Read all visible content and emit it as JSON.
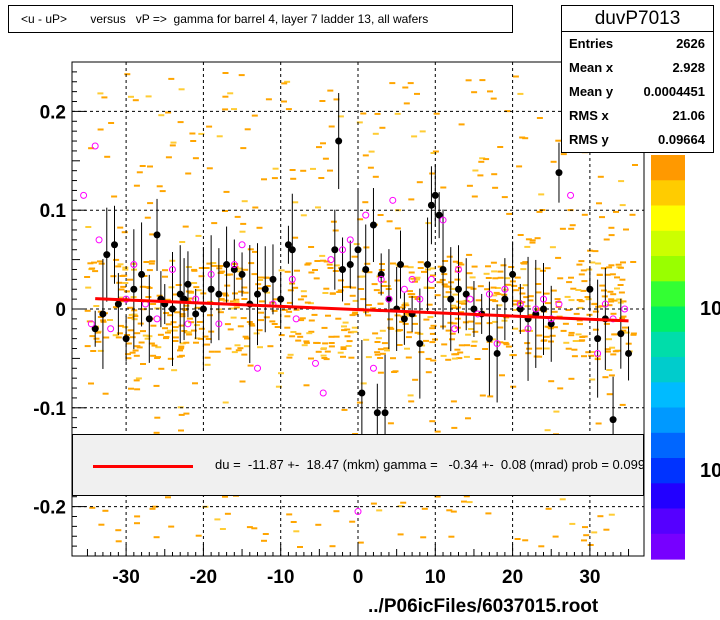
{
  "title": "<u - uP>       versus   vP =>  gamma for barrel 4, layer 7 ladder 13, all wafers",
  "stats": {
    "name": "duvP7013",
    "rows": [
      {
        "label": "Entries",
        "value": "2626"
      },
      {
        "label": "Mean x",
        "value": "2.928"
      },
      {
        "label": "Mean y",
        "value": "0.0004451"
      },
      {
        "label": "RMS x",
        "value": "21.06"
      },
      {
        "label": "RMS y",
        "value": "0.09664"
      }
    ]
  },
  "legend": {
    "text": "du =  -11.87 +-  18.47 (mkm) gamma =   -0.34 +-  0.08 (mrad) prob = 0.099"
  },
  "footer": "../P06icFiles/6037015.root",
  "palette_labels": [
    "10",
    "10"
  ],
  "colors": {
    "histogram_fill": "#ffa500",
    "histogram_light": "#ffcc33",
    "profile_point": "#000000",
    "marker_open": "#ff00ff",
    "fit_line": "#ff0000",
    "legend_bg": "#f0f0f0"
  },
  "chart_data": {
    "type": "scatter",
    "xlim": [
      -37,
      37
    ],
    "ylim": [
      -0.25,
      0.25
    ],
    "x_ticks": [
      -30,
      -20,
      -10,
      0,
      10,
      20,
      30
    ],
    "y_ticks": [
      -0.2,
      -0.1,
      0,
      0.1,
      0.2
    ],
    "x_tick_labels": [
      "-30",
      "-20",
      "-10",
      "0",
      "10",
      "20",
      "30"
    ],
    "y_tick_labels": [
      "-0.2",
      "-0.1",
      "0",
      "0.1",
      "0.2"
    ],
    "grid": true,
    "fit_line": {
      "x": [
        -34,
        35
      ],
      "y": [
        0.0105,
        -0.012
      ]
    },
    "profile_points": [
      {
        "x": -34,
        "y": -0.02
      },
      {
        "x": -33,
        "y": -0.005
      },
      {
        "x": -32.5,
        "y": 0.055
      },
      {
        "x": -31.5,
        "y": 0.065
      },
      {
        "x": -31,
        "y": 0.005
      },
      {
        "x": -30,
        "y": -0.03
      },
      {
        "x": -29,
        "y": 0.02
      },
      {
        "x": -28,
        "y": 0.035
      },
      {
        "x": -27,
        "y": -0.01
      },
      {
        "x": -26,
        "y": 0.075
      },
      {
        "x": -25.5,
        "y": 0.01
      },
      {
        "x": -25,
        "y": 0.005
      },
      {
        "x": -24,
        "y": 0.0
      },
      {
        "x": -23,
        "y": 0.015
      },
      {
        "x": -22.5,
        "y": 0.01
      },
      {
        "x": -22,
        "y": 0.025
      },
      {
        "x": -21,
        "y": -0.005
      },
      {
        "x": -20,
        "y": 0.0
      },
      {
        "x": -19,
        "y": 0.02
      },
      {
        "x": -18,
        "y": 0.015
      },
      {
        "x": -17,
        "y": 0.045
      },
      {
        "x": -16,
        "y": 0.04
      },
      {
        "x": -15,
        "y": 0.035
      },
      {
        "x": -14,
        "y": 0.005
      },
      {
        "x": -13,
        "y": 0.015
      },
      {
        "x": -12,
        "y": 0.02
      },
      {
        "x": -11,
        "y": 0.03
      },
      {
        "x": -10,
        "y": 0.01
      },
      {
        "x": -9,
        "y": 0.065
      },
      {
        "x": -8.5,
        "y": 0.06
      },
      {
        "x": -2.5,
        "y": 0.17
      },
      {
        "x": -3,
        "y": 0.06
      },
      {
        "x": -2,
        "y": 0.04
      },
      {
        "x": -1,
        "y": 0.045
      },
      {
        "x": 0,
        "y": 0.06
      },
      {
        "x": 0.5,
        "y": -0.085
      },
      {
        "x": 1,
        "y": 0.04
      },
      {
        "x": 2,
        "y": 0.085
      },
      {
        "x": 2.5,
        "y": -0.105
      },
      {
        "x": 3,
        "y": 0.035
      },
      {
        "x": 3.5,
        "y": -0.105
      },
      {
        "x": 4,
        "y": 0.01
      },
      {
        "x": 5,
        "y": 0.0
      },
      {
        "x": 5.5,
        "y": 0.045
      },
      {
        "x": 6,
        "y": -0.01
      },
      {
        "x": 7,
        "y": -0.005
      },
      {
        "x": 8,
        "y": -0.035
      },
      {
        "x": 9,
        "y": 0.045
      },
      {
        "x": 9.5,
        "y": 0.105
      },
      {
        "x": 10,
        "y": 0.115
      },
      {
        "x": 10.5,
        "y": 0.095
      },
      {
        "x": 11,
        "y": 0.04
      },
      {
        "x": 12,
        "y": 0.01
      },
      {
        "x": 13,
        "y": 0.02
      },
      {
        "x": 14,
        "y": 0.015
      },
      {
        "x": 15,
        "y": 0.0
      },
      {
        "x": 16,
        "y": -0.005
      },
      {
        "x": 17,
        "y": -0.03
      },
      {
        "x": 18,
        "y": -0.045
      },
      {
        "x": 19,
        "y": 0.01
      },
      {
        "x": 20,
        "y": 0.035
      },
      {
        "x": 21,
        "y": 0.0
      },
      {
        "x": 22,
        "y": -0.01
      },
      {
        "x": 23,
        "y": -0.005
      },
      {
        "x": 24,
        "y": 0.0
      },
      {
        "x": 25,
        "y": -0.015
      },
      {
        "x": 26,
        "y": 0.138
      },
      {
        "x": 30,
        "y": 0.02
      },
      {
        "x": 31,
        "y": -0.03
      },
      {
        "x": 32,
        "y": -0.01
      },
      {
        "x": 33,
        "y": -0.112
      },
      {
        "x": 34,
        "y": -0.025
      },
      {
        "x": 35,
        "y": -0.045
      }
    ],
    "open_markers": [
      {
        "x": -35.5,
        "y": 0.115
      },
      {
        "x": -34.5,
        "y": -0.015
      },
      {
        "x": -34,
        "y": 0.165
      },
      {
        "x": -33.5,
        "y": 0.07
      },
      {
        "x": -32,
        "y": -0.02
      },
      {
        "x": -30,
        "y": 0.01
      },
      {
        "x": -29,
        "y": 0.045
      },
      {
        "x": -27.5,
        "y": 0.005
      },
      {
        "x": -26,
        "y": -0.01
      },
      {
        "x": -24,
        "y": 0.04
      },
      {
        "x": -22,
        "y": -0.015
      },
      {
        "x": -21,
        "y": 0.01
      },
      {
        "x": -19,
        "y": 0.035
      },
      {
        "x": -18,
        "y": -0.015
      },
      {
        "x": -16,
        "y": 0.045
      },
      {
        "x": -15,
        "y": 0.065
      },
      {
        "x": -13,
        "y": -0.06
      },
      {
        "x": -11,
        "y": 0.005
      },
      {
        "x": -8.5,
        "y": 0.03
      },
      {
        "x": -8,
        "y": -0.01
      },
      {
        "x": -5.5,
        "y": -0.055
      },
      {
        "x": -4.5,
        "y": -0.085
      },
      {
        "x": -5,
        "y": -0.185
      },
      {
        "x": -3.5,
        "y": 0.05
      },
      {
        "x": -2,
        "y": 0.06
      },
      {
        "x": -1,
        "y": 0.07
      },
      {
        "x": 0,
        "y": -0.205
      },
      {
        "x": 1,
        "y": 0.095
      },
      {
        "x": 2,
        "y": -0.06
      },
      {
        "x": 3,
        "y": 0.03
      },
      {
        "x": 4,
        "y": 0.01
      },
      {
        "x": 4.5,
        "y": 0.11
      },
      {
        "x": 6,
        "y": 0.02
      },
      {
        "x": 7,
        "y": 0.03
      },
      {
        "x": 8,
        "y": 0.01
      },
      {
        "x": 9.5,
        "y": 0.03
      },
      {
        "x": 11,
        "y": 0.09
      },
      {
        "x": 12.5,
        "y": -0.02
      },
      {
        "x": 13,
        "y": 0.04
      },
      {
        "x": 14.5,
        "y": 0.01
      },
      {
        "x": 15.5,
        "y": -0.005
      },
      {
        "x": 17,
        "y": 0.015
      },
      {
        "x": 18,
        "y": -0.035
      },
      {
        "x": 19,
        "y": 0.02
      },
      {
        "x": 21,
        "y": 0.005
      },
      {
        "x": 22,
        "y": -0.02
      },
      {
        "x": 23,
        "y": 0.0
      },
      {
        "x": 24,
        "y": 0.01
      },
      {
        "x": 25,
        "y": -0.01
      },
      {
        "x": 26,
        "y": 0.005
      },
      {
        "x": 27.5,
        "y": 0.115
      },
      {
        "x": 31,
        "y": -0.045
      },
      {
        "x": 32,
        "y": 0.005
      },
      {
        "x": 33,
        "y": -0.01
      },
      {
        "x": 34.5,
        "y": 0.0
      }
    ]
  }
}
